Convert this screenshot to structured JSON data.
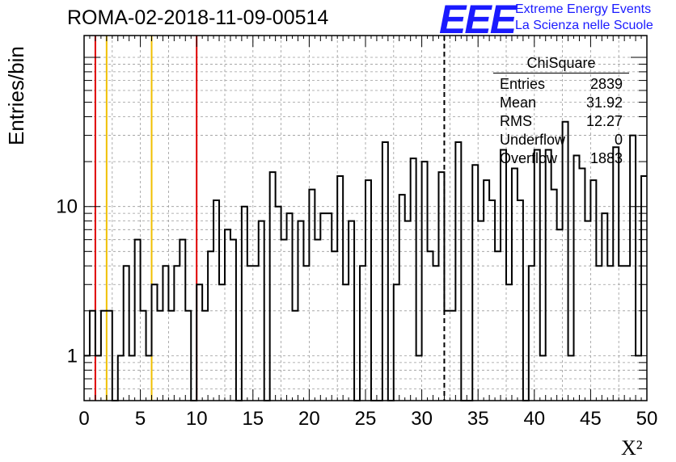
{
  "header": {
    "title": "ROMA-02-2018-11-09-00514",
    "logo_text": "EEE",
    "logo_line1": "Extreme Energy Events",
    "logo_line2": "La Scienza nelle Scuole"
  },
  "stats_box": {
    "title": "ChiSquare",
    "rows": [
      {
        "label": "Entries",
        "value": "2839"
      },
      {
        "label": "Mean",
        "value": "31.92"
      },
      {
        "label": "RMS",
        "value": "12.27"
      },
      {
        "label": "Underflow",
        "value": "0"
      },
      {
        "label": "Overflow",
        "value": "1883"
      }
    ]
  },
  "colors": {
    "line": "#000000",
    "grid": "#9a9a9a",
    "red_marker": "#e00000",
    "yellow_marker": "#f0c000",
    "logo_blue": "#1a1aff"
  },
  "chart_data": {
    "type": "bar",
    "subtype": "step-histogram",
    "title": "ROMA-02-2018-11-09-00514",
    "xlabel": "X²",
    "ylabel": "Entries/bin",
    "xlim": [
      0,
      50
    ],
    "ylim": [
      0.5,
      140
    ],
    "yscale": "log",
    "grid": true,
    "bin_width": 0.5,
    "x_ticks": [
      0,
      5,
      10,
      15,
      20,
      25,
      30,
      35,
      40,
      45,
      50
    ],
    "y_ticks": [
      1,
      10
    ],
    "values": [
      1,
      2,
      1,
      2,
      2,
      0,
      1,
      4,
      1,
      6,
      2,
      1,
      3,
      2,
      4,
      2,
      4,
      6,
      2,
      0,
      3,
      2,
      5,
      11,
      3,
      7,
      6,
      0,
      10,
      4,
      4,
      8,
      0,
      17,
      10,
      6,
      9,
      2,
      8,
      4,
      13,
      6,
      9,
      9,
      5,
      16,
      3,
      8,
      0,
      4,
      15,
      0,
      0,
      27,
      0,
      3,
      12,
      8,
      21,
      1,
      20,
      5,
      4,
      17,
      2,
      2,
      27,
      0,
      0,
      19,
      8,
      15,
      11,
      5,
      24,
      3,
      18,
      11,
      0,
      4,
      24,
      1,
      24,
      13,
      7,
      37,
      1,
      22,
      18,
      8,
      15,
      4,
      9,
      4,
      25,
      4,
      4,
      30,
      1,
      16
    ],
    "vertical_markers": [
      {
        "x": 1,
        "color": "red"
      },
      {
        "x": 2,
        "color": "yellow"
      },
      {
        "x": 6,
        "color": "yellow"
      },
      {
        "x": 10,
        "color": "red"
      },
      {
        "x": 32,
        "color": "black-dashed"
      }
    ]
  }
}
